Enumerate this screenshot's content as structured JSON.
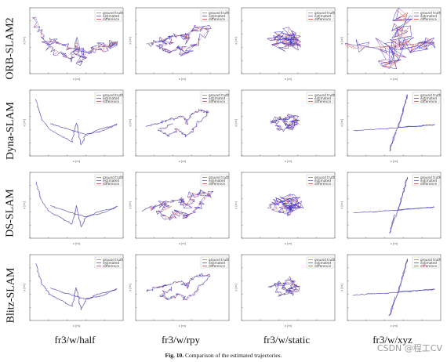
{
  "rows": [
    {
      "label": "ORB-SLAM2"
    },
    {
      "label": "Dyna-SLAM"
    },
    {
      "label": "DS-SLAM"
    },
    {
      "label": "Blitz-SLAM"
    }
  ],
  "columns": [
    {
      "label": "fr3/w/half"
    },
    {
      "label": "fr3/w/rpy"
    },
    {
      "label": "fr3/w/static"
    },
    {
      "label": "fr3/w/xyz"
    }
  ],
  "legend": {
    "ground_truth": "ground truth",
    "estimated": "estimated",
    "difference": "difference"
  },
  "axis": {
    "xlabel": "x [m]",
    "ylabel": "y [m]"
  },
  "colors": {
    "ground_truth": "#777777",
    "estimated": "#3b3bd9",
    "difference": "#e81e1e"
  },
  "caption": {
    "prefix": "Fig. 10.",
    "text": "Comparison of the estimated trajectories."
  },
  "watermark": "CSDN @程工CV"
}
